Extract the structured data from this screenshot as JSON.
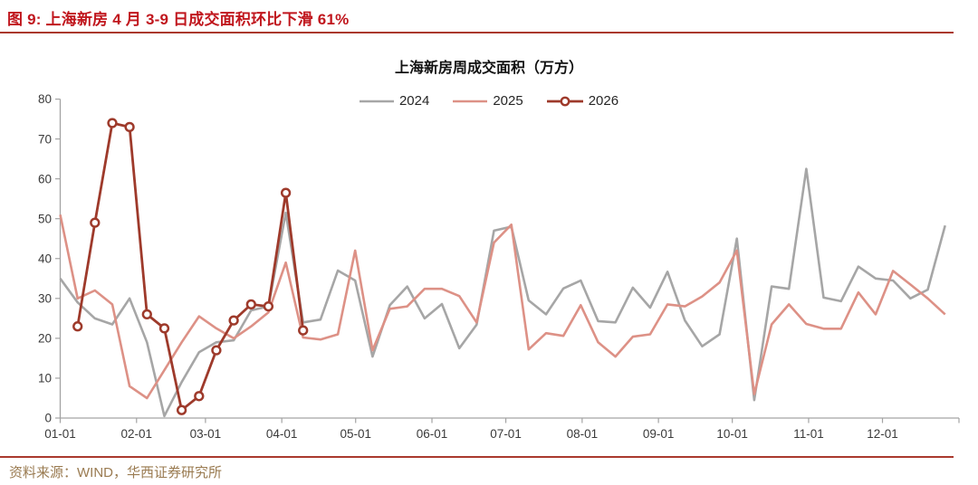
{
  "header": {
    "caption": "图 9: 上海新房 4 月 3-9 日成交面积环比下滑 61%"
  },
  "footer": {
    "source": "资料来源：WIND，华西证券研究所"
  },
  "colors": {
    "header_red": "#c0161d",
    "rule_red": "#aa392d",
    "footer_brown": "#9a7b51"
  },
  "chart_data": {
    "type": "line",
    "title": "上海新房周成交面积（万方）",
    "xlabel": "",
    "ylabel": "",
    "ylim": [
      0,
      80
    ],
    "yticks": [
      0,
      10,
      20,
      30,
      40,
      50,
      60,
      70,
      80
    ],
    "xtick_labels": [
      "01-01",
      "02-01",
      "03-01",
      "04-01",
      "05-01",
      "06-01",
      "07-01",
      "08-01",
      "09-01",
      "10-01",
      "11-01",
      "12-01"
    ],
    "grid": false,
    "legend_position": "top-center",
    "x_unit": "week-of-year",
    "series": [
      {
        "name": "2024",
        "color": "#a6a6a6",
        "line_width": 2.6,
        "marker": "none",
        "start_week": 0,
        "values": [
          35,
          29,
          25,
          23.5,
          30,
          19,
          0.5,
          9,
          16.5,
          19,
          19.5,
          27,
          28,
          51.5,
          24,
          24.7,
          37,
          34.5,
          15.4,
          28.3,
          33,
          25,
          28.6,
          17.5,
          23.4,
          47,
          48,
          29.5,
          26,
          32.5,
          34.5,
          24.3,
          24,
          32.7,
          27.7,
          36.7,
          24.5,
          18,
          21,
          45,
          4.5,
          33,
          32.4,
          62.5,
          30.2,
          29.3,
          38,
          35,
          34.5,
          30,
          32.2,
          48.3
        ]
      },
      {
        "name": "2025",
        "color": "#dd9186",
        "line_width": 2.6,
        "marker": "none",
        "start_week": 0,
        "values": [
          51,
          30,
          32,
          28.5,
          8,
          5,
          12,
          19,
          25.5,
          22.5,
          20,
          23,
          26.5,
          39,
          20.2,
          19.7,
          21,
          42,
          17,
          27.4,
          28,
          32.4,
          32.4,
          30.6,
          24,
          44,
          48.5,
          17.2,
          21.3,
          20.6,
          28.3,
          19,
          15.4,
          20.4,
          21,
          28.5,
          28,
          30.5,
          34,
          42,
          6,
          23.5,
          28.5,
          23.6,
          22.4,
          22.4,
          31.5,
          26,
          36.9,
          33.5,
          30,
          26
        ]
      },
      {
        "name": "2026",
        "color": "#9e3a2b",
        "line_width": 2.8,
        "marker": "open-circle",
        "start_week": 1,
        "values": [
          23,
          49,
          74,
          73,
          26,
          22.5,
          2,
          5.5,
          17,
          24.5,
          28.5,
          28,
          56.5,
          22
        ]
      }
    ]
  }
}
